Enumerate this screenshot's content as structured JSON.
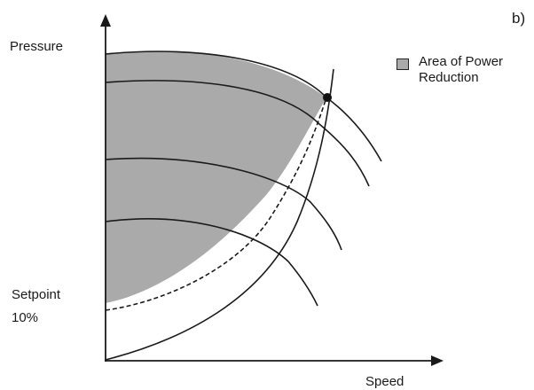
{
  "panel_label": "b)",
  "y_axis_label": "Pressure",
  "x_axis_label": "Speed",
  "setpoint_label": "Setpoint",
  "setpoint_value": "10%",
  "legend": {
    "line1": "Area of Power",
    "line2": "Reduction",
    "swatch_color": "#aaaaaa"
  },
  "colors": {
    "shaded_area": "#aaaaaa",
    "curves": "#1a1a1a"
  }
}
